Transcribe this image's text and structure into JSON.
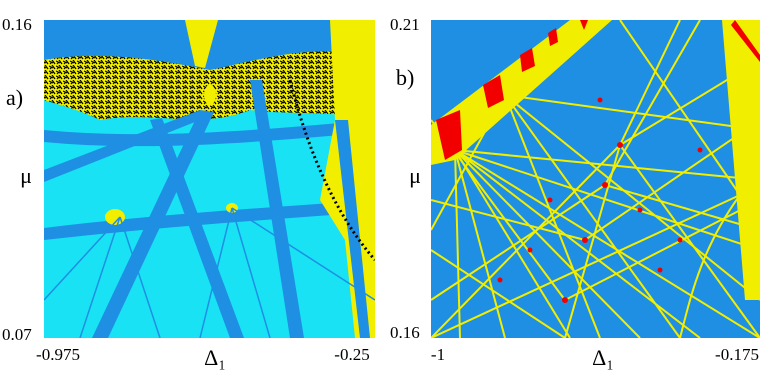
{
  "panels": [
    {
      "label": "a)",
      "y_label": "μ",
      "x_label": "Δ₁",
      "x_ticks": [
        -0.975,
        -0.25
      ],
      "y_ticks": [
        0.07,
        0.16
      ]
    },
    {
      "label": "b)",
      "y_label": "μ",
      "x_label": "Δ₁",
      "x_ticks": [
        -1,
        -0.175
      ],
      "y_ticks": [
        0.16,
        0.21
      ]
    }
  ]
}
